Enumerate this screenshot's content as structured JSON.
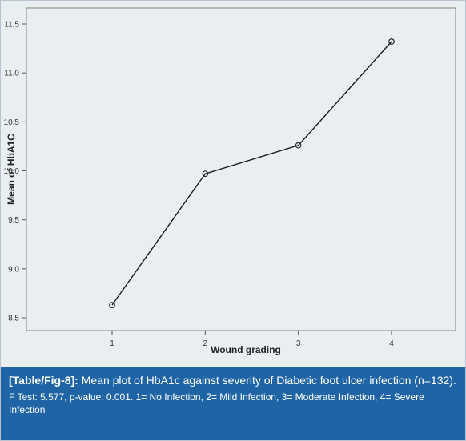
{
  "chart_data": {
    "type": "line",
    "x": [
      1,
      2,
      3,
      4
    ],
    "categories": [
      "1",
      "2",
      "3",
      "4"
    ],
    "values": [
      8.63,
      9.97,
      10.26,
      11.32
    ],
    "xlabel": "Wound grading",
    "ylabel": "Mean of HbA1C",
    "ylim": [
      8.5,
      11.5
    ],
    "yticks": [
      8.5,
      9.0,
      9.5,
      10.0,
      10.5,
      11.0,
      11.5
    ],
    "yticklabels": [
      "8.5",
      "9.0",
      "9.5",
      "10.0",
      "10.5",
      "11.0",
      "11.5"
    ],
    "grid": false,
    "colors": {
      "line": "#1a1a1a",
      "plot_background": "#e9eef1",
      "caption_background": "#1f65a6"
    }
  },
  "caption": {
    "ref": "[Table/Fig-8]:",
    "title": "Mean plot of HbA1c against severity of Diabetic foot ulcer infection (n=132).",
    "note": "F Test: 5.577, p-value: 0.001. 1= No Infection, 2= Mild Infection, 3= Moderate Infection, 4= Severe Infection"
  }
}
